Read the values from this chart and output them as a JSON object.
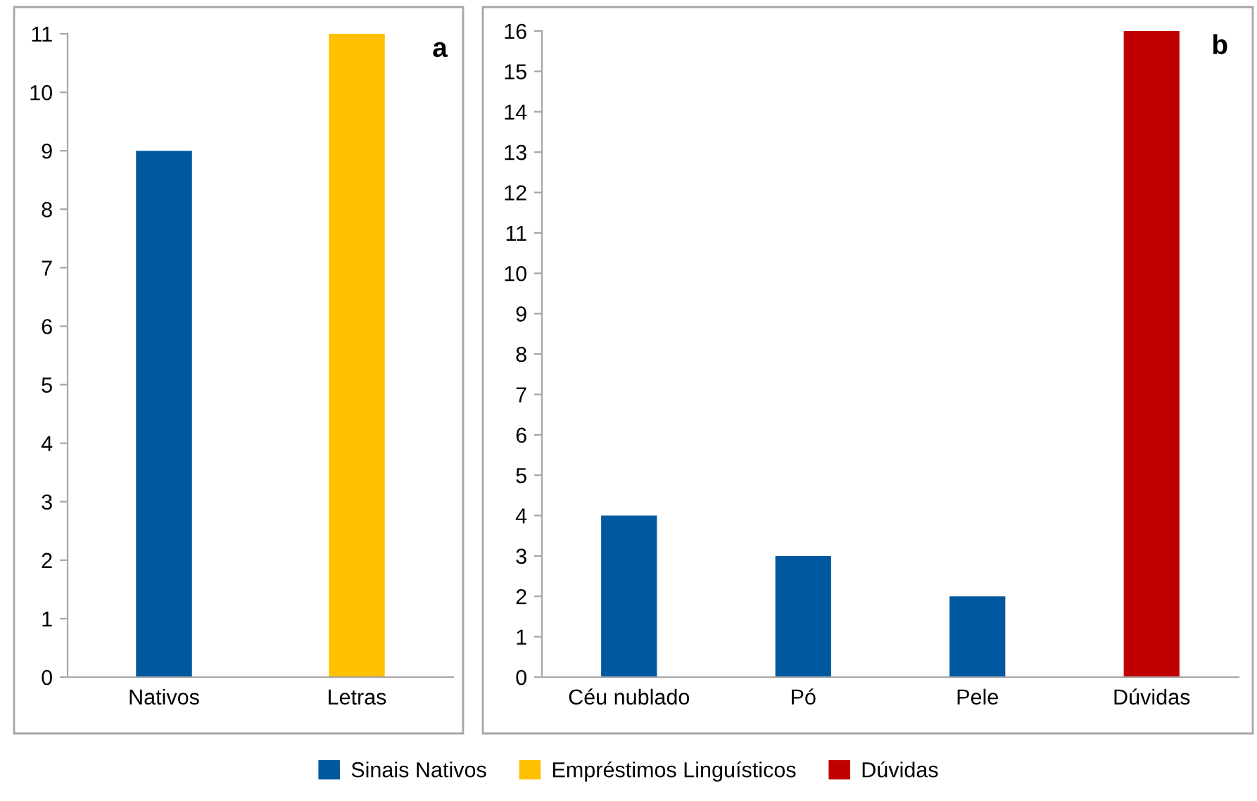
{
  "chart_data": [
    {
      "type": "bar",
      "title": "a",
      "categories": [
        "Nativos",
        "Letras"
      ],
      "series": [
        {
          "name": "Sinais Nativos",
          "color": "#00589f",
          "values": [
            9,
            null
          ]
        },
        {
          "name": "Empréstimos Linguísticos",
          "color": "#ffc000",
          "values": [
            null,
            11
          ]
        }
      ],
      "ylim": [
        0,
        11
      ],
      "yticks": [
        0,
        1,
        2,
        3,
        4,
        5,
        6,
        7,
        8,
        9,
        10,
        11
      ],
      "grid": false,
      "legend": "bottom"
    },
    {
      "type": "bar",
      "title": "b",
      "categories": [
        "Céu nublado",
        "Pó",
        "Pele",
        "Dúvidas"
      ],
      "series": [
        {
          "name": "Sinais Nativos",
          "color": "#00589f",
          "values": [
            4,
            3,
            2,
            null
          ]
        },
        {
          "name": "Dúvidas",
          "color": "#c00000",
          "values": [
            null,
            null,
            null,
            16
          ]
        }
      ],
      "ylim": [
        0,
        16
      ],
      "yticks": [
        0,
        1,
        2,
        3,
        4,
        5,
        6,
        7,
        8,
        9,
        10,
        11,
        12,
        13,
        14,
        15,
        16
      ],
      "grid": false,
      "legend": "bottom"
    }
  ]
}
